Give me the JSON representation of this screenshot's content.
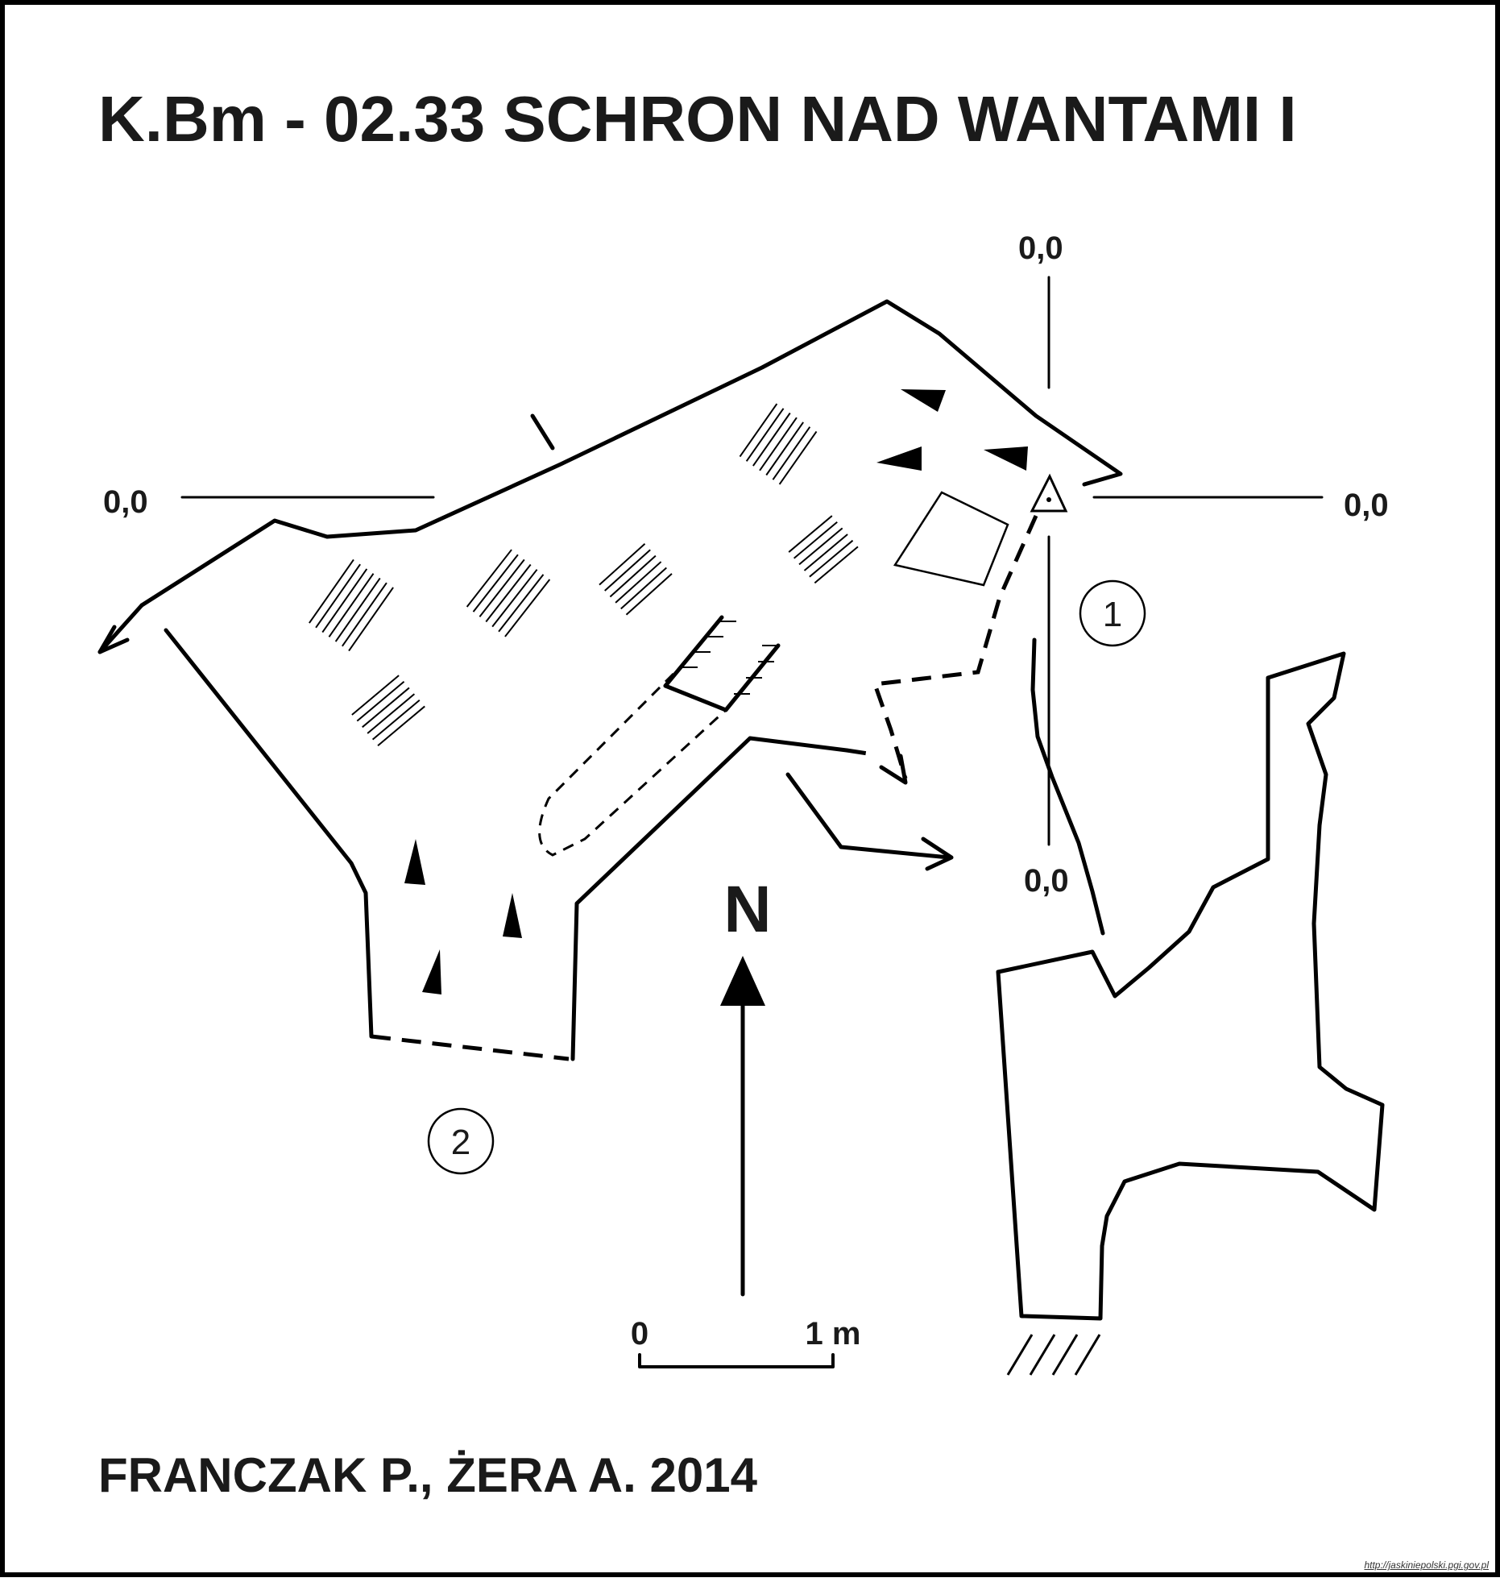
{
  "title": "K.Bm - 02.33 SCHRON NAD WANTAMI I",
  "authors": "FRANCZAK P., ŻERA A. 2014",
  "source_url": "http://jaskiniepolski.pgi.gov.pl",
  "section_labels": {
    "top": "0,0",
    "left": "0,0",
    "right": "0,0",
    "bottom": "0,0"
  },
  "markers": {
    "one": "1",
    "two": "2"
  },
  "north_label": "N",
  "scale": {
    "start": "0",
    "end": "1 m"
  }
}
